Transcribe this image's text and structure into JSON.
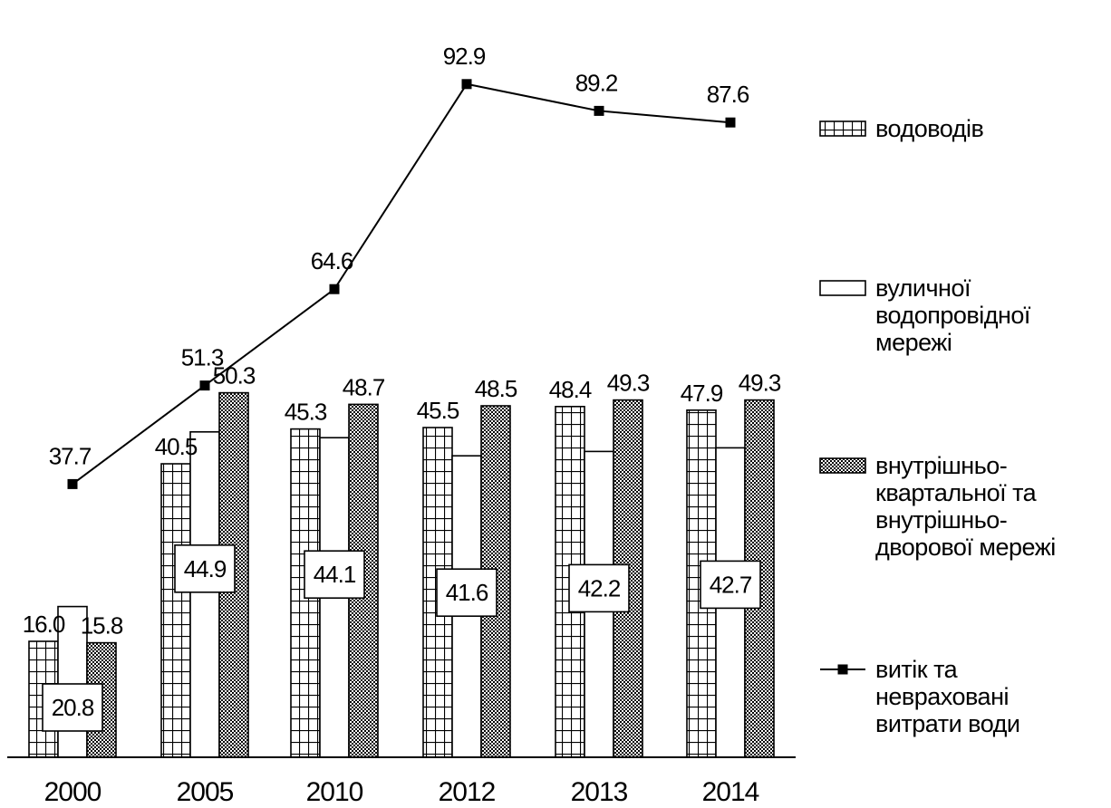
{
  "chart_data": {
    "type": "bar",
    "title": "",
    "xlabel": "",
    "ylabel": "",
    "categories": [
      "2000",
      "2005",
      "2010",
      "2012",
      "2013",
      "2014"
    ],
    "ylim": [
      0,
      100
    ],
    "grid": false,
    "legend_position": "right",
    "series": [
      {
        "name": "водоводів",
        "kind": "bar",
        "pattern": "grid",
        "values": [
          16.0,
          40.5,
          45.3,
          45.5,
          48.4,
          47.9
        ],
        "labels": [
          "16.0",
          "40.5",
          "45.3",
          "45.5",
          "48.4",
          "47.9"
        ]
      },
      {
        "name": "вуличної водопровідної мережі",
        "legend_lines": [
          "вуличної",
          "водопровідної",
          "мережі"
        ],
        "kind": "bar",
        "pattern": "plain",
        "values": [
          20.8,
          44.9,
          44.1,
          41.6,
          42.2,
          42.7
        ],
        "labels": [
          "20.8",
          "44.9",
          "44.1",
          "41.6",
          "42.2",
          "42.7"
        ]
      },
      {
        "name": "внутрішньо-квартальної та внутрішньо-дворової мережі",
        "legend_lines": [
          "внутрішньо-",
          "квартальної та",
          "внутрішньо-",
          "дворової мережі"
        ],
        "kind": "bar",
        "pattern": "dots",
        "values": [
          15.8,
          50.3,
          48.7,
          48.5,
          49.3,
          49.3
        ],
        "labels": [
          "15.8",
          "50.3",
          "48.7",
          "48.5",
          "49.3",
          "49.3"
        ]
      },
      {
        "name": "витік та неврахований витрати води",
        "legend_lines": [
          "витік та",
          "невраховані",
          "витрати води"
        ],
        "kind": "line",
        "marker": "square",
        "values": [
          37.7,
          51.3,
          64.6,
          92.9,
          89.2,
          87.6
        ],
        "labels": [
          "37.7",
          "51.3",
          "64.6",
          "92.9",
          "89.2",
          "87.6"
        ]
      }
    ]
  }
}
